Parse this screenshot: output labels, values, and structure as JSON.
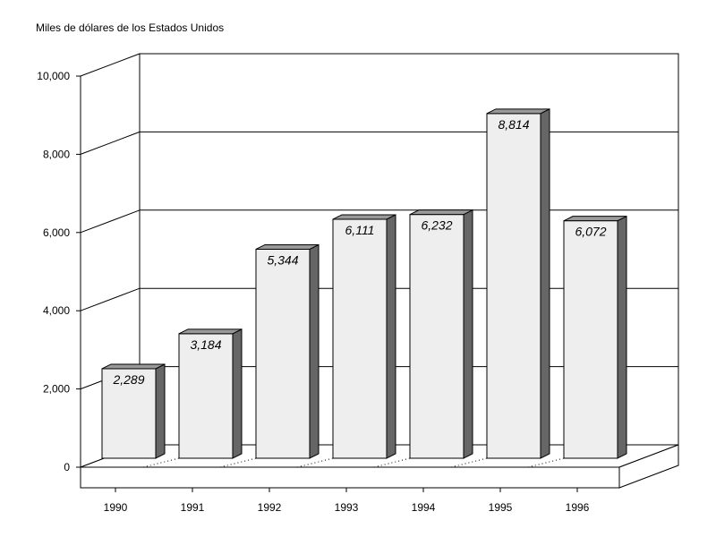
{
  "chart_data": {
    "type": "bar",
    "title": "",
    "ylabel": "Miles de dólares de los Estados Unidos",
    "xlabel": "",
    "categories": [
      "1990",
      "1991",
      "1992",
      "1993",
      "1994",
      "1995",
      "1996"
    ],
    "values": [
      2289,
      3184,
      5344,
      6111,
      6232,
      8814,
      6072
    ],
    "value_labels": [
      "2,289",
      "3,184",
      "5,344",
      "6,111",
      "6,232",
      "8,814",
      "6,072"
    ],
    "ylim": [
      0,
      10000
    ],
    "yticks": [
      0,
      2000,
      4000,
      6000,
      8000,
      10000
    ],
    "ytick_labels": [
      "0",
      "2,000",
      "4,000",
      "6,000",
      "8,000",
      "10,000"
    ],
    "grid": true,
    "style": "3d",
    "colors": {
      "bar_face": "#eeeeee",
      "bar_side": "#666666",
      "bar_top": "#999999",
      "grid": "#000000"
    }
  }
}
